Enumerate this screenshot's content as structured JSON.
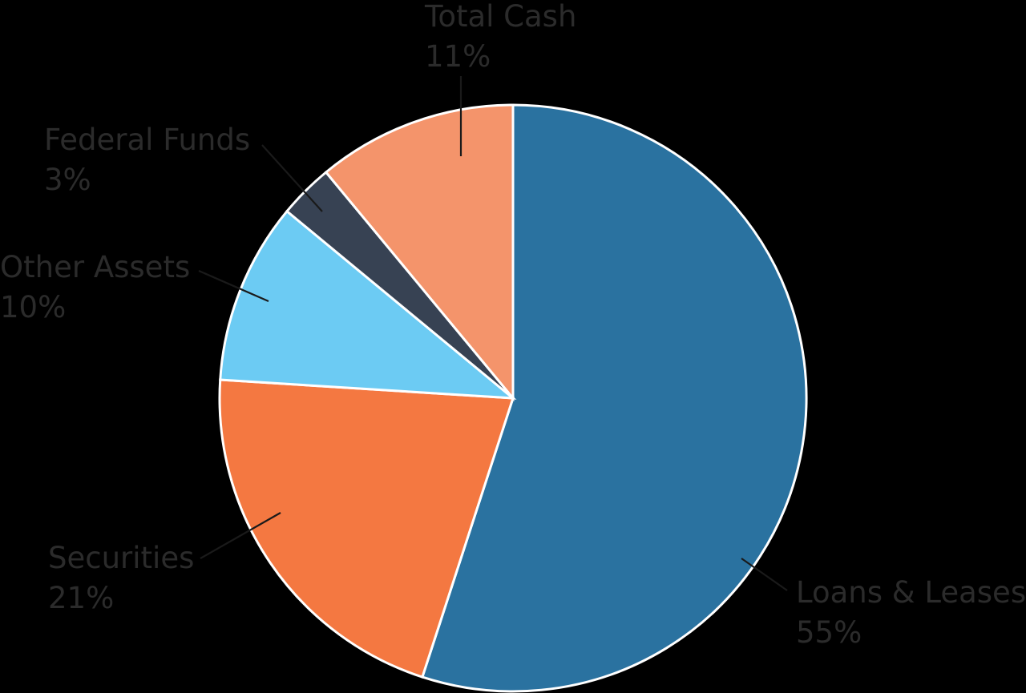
{
  "chart_data": {
    "type": "pie",
    "title": "",
    "start_angle_deg": 0,
    "direction": "clockwise",
    "slices": [
      {
        "label": "Loans & Leases",
        "percent_label": "55%",
        "value": 55,
        "color": "#2a72a0"
      },
      {
        "label": "Securities",
        "percent_label": "21%",
        "value": 21,
        "color": "#f47841"
      },
      {
        "label": "Other Assets",
        "percent_label": "10%",
        "value": 10,
        "color": "#6ccbf3"
      },
      {
        "label": "Federal Funds",
        "percent_label": "3%",
        "value": 3,
        "color": "#374253"
      },
      {
        "label": "Total Cash",
        "percent_label": "11%",
        "value": 11,
        "color": "#f4946b"
      }
    ],
    "legend": "none"
  }
}
